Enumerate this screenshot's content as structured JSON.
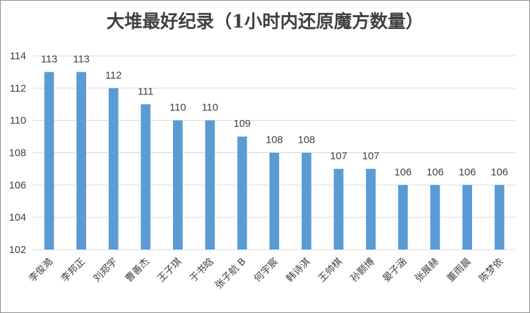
{
  "chart_data": {
    "type": "bar",
    "title": "大堆最好纪录（1小时内还原魔方数量）",
    "categories": [
      "李俊澔",
      "李邦正",
      "刘郑宇",
      "曹善杰",
      "王子琪",
      "于书晗",
      "张子航 B",
      "何宇宸",
      "韩诗淇",
      "王帅棋",
      "孙颢博",
      "晏子涵",
      "张展赫",
      "董雨晨",
      "陈梦依"
    ],
    "values": [
      113,
      113,
      112,
      111,
      110,
      110,
      109,
      108,
      108,
      107,
      107,
      106,
      106,
      106,
      106
    ],
    "ylim": [
      102,
      114
    ],
    "yticks": [
      102,
      104,
      106,
      108,
      110,
      112,
      114
    ],
    "grid": true,
    "legend": "none",
    "bar_color": "#5b9bd5",
    "grid_color": "#d9d9d9"
  }
}
